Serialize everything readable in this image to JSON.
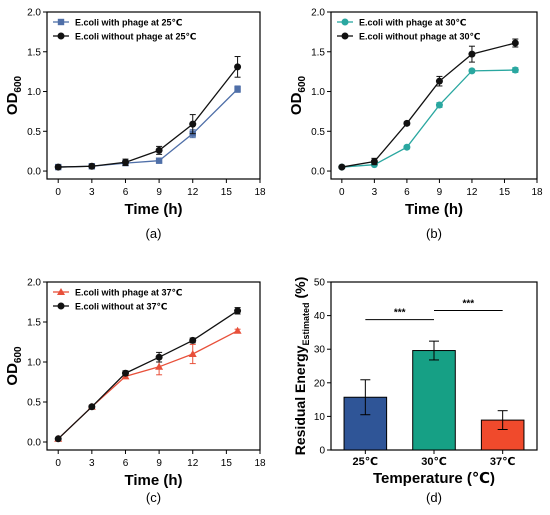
{
  "chart_data": [
    {
      "type": "line",
      "panel_label": "(a)",
      "xlabel": "Time (h)",
      "ylabel": "OD",
      "ylabel_sub": "600",
      "xlim": [
        -1,
        18
      ],
      "ylim": [
        -0.1,
        2.0
      ],
      "xticks": [
        0,
        3,
        6,
        9,
        12,
        15,
        18
      ],
      "yticks": [
        0.0,
        0.5,
        1.0,
        1.5,
        2.0
      ],
      "x": [
        0,
        3,
        6,
        9,
        12,
        16
      ],
      "legend_position": "top-left",
      "series": [
        {
          "name": "E.coli with phage at 25℃",
          "values": [
            0.05,
            0.06,
            0.1,
            0.13,
            0.47,
            1.03
          ],
          "errors": [
            0.01,
            0.01,
            0.02,
            0.02,
            0.05,
            0.04
          ],
          "color": "#4f6fa8",
          "marker": "square"
        },
        {
          "name": "E.coli without  phage at 25℃",
          "values": [
            0.05,
            0.06,
            0.11,
            0.26,
            0.59,
            1.31
          ],
          "errors": [
            0.01,
            0.01,
            0.04,
            0.05,
            0.12,
            0.13
          ],
          "color": "#111111",
          "marker": "circle"
        }
      ]
    },
    {
      "type": "line",
      "panel_label": "(b)",
      "xlabel": "Time (h)",
      "ylabel": "OD",
      "ylabel_sub": "600",
      "xlim": [
        -1,
        18
      ],
      "ylim": [
        -0.1,
        2.0
      ],
      "xticks": [
        0,
        3,
        6,
        9,
        12,
        15,
        18
      ],
      "yticks": [
        0.0,
        0.5,
        1.0,
        1.5,
        2.0
      ],
      "x": [
        0,
        3,
        6,
        9,
        12,
        16
      ],
      "legend_position": "top-left",
      "series": [
        {
          "name": "E.coli with phage at 30℃",
          "values": [
            0.05,
            0.08,
            0.3,
            0.83,
            1.26,
            1.27
          ],
          "errors": [
            0.01,
            0.01,
            0.02,
            0.03,
            0.02,
            0.03
          ],
          "color": "#2aa7a0",
          "marker": "circle"
        },
        {
          "name": "E.coli without phage at 30℃",
          "values": [
            0.05,
            0.12,
            0.6,
            1.13,
            1.47,
            1.61
          ],
          "errors": [
            0.01,
            0.04,
            0.02,
            0.06,
            0.1,
            0.05
          ],
          "color": "#111111",
          "marker": "circle"
        }
      ]
    },
    {
      "type": "line",
      "panel_label": "(c)",
      "xlabel": "Time (h)",
      "ylabel": "OD",
      "ylabel_sub": "600",
      "xlim": [
        -1,
        18
      ],
      "ylim": [
        -0.1,
        2.0
      ],
      "xticks": [
        0,
        3,
        6,
        9,
        12,
        15,
        18
      ],
      "yticks": [
        0.0,
        0.5,
        1.0,
        1.5,
        2.0
      ],
      "x": [
        0,
        3,
        6,
        9,
        12,
        16
      ],
      "legend_position": "top-left",
      "series": [
        {
          "name": "E.coli with phage at 37℃",
          "values": [
            0.04,
            0.44,
            0.82,
            0.94,
            1.1,
            1.39
          ],
          "errors": [
            0.01,
            0.02,
            0.02,
            0.1,
            0.12,
            0.02
          ],
          "color": "#e8503a",
          "marker": "triangle"
        },
        {
          "name": "E.coli without at 37℃",
          "values": [
            0.04,
            0.44,
            0.86,
            1.06,
            1.27,
            1.64
          ],
          "errors": [
            0.01,
            0.02,
            0.03,
            0.06,
            0.03,
            0.04
          ],
          "color": "#111111",
          "marker": "circle"
        }
      ]
    },
    {
      "type": "bar",
      "panel_label": "(d)",
      "xlabel": "Temperature (℃)",
      "ylabel": "Residual Energy",
      "ylabel_sub": "Estimated",
      "ylabel_unit": "(%)",
      "ylim": [
        0,
        50
      ],
      "yticks": [
        0,
        10,
        20,
        30,
        40,
        50
      ],
      "categories": [
        "25℃",
        "30℃",
        "37℃"
      ],
      "values": [
        15.7,
        29.6,
        8.9
      ],
      "errors": [
        5.2,
        2.8,
        2.8
      ],
      "colors": [
        "#2f5597",
        "#16a085",
        "#f04a2c"
      ],
      "significance": [
        {
          "from": 0,
          "to": 1,
          "label": "***"
        },
        {
          "from": 1,
          "to": 2,
          "label": "***"
        }
      ]
    }
  ]
}
